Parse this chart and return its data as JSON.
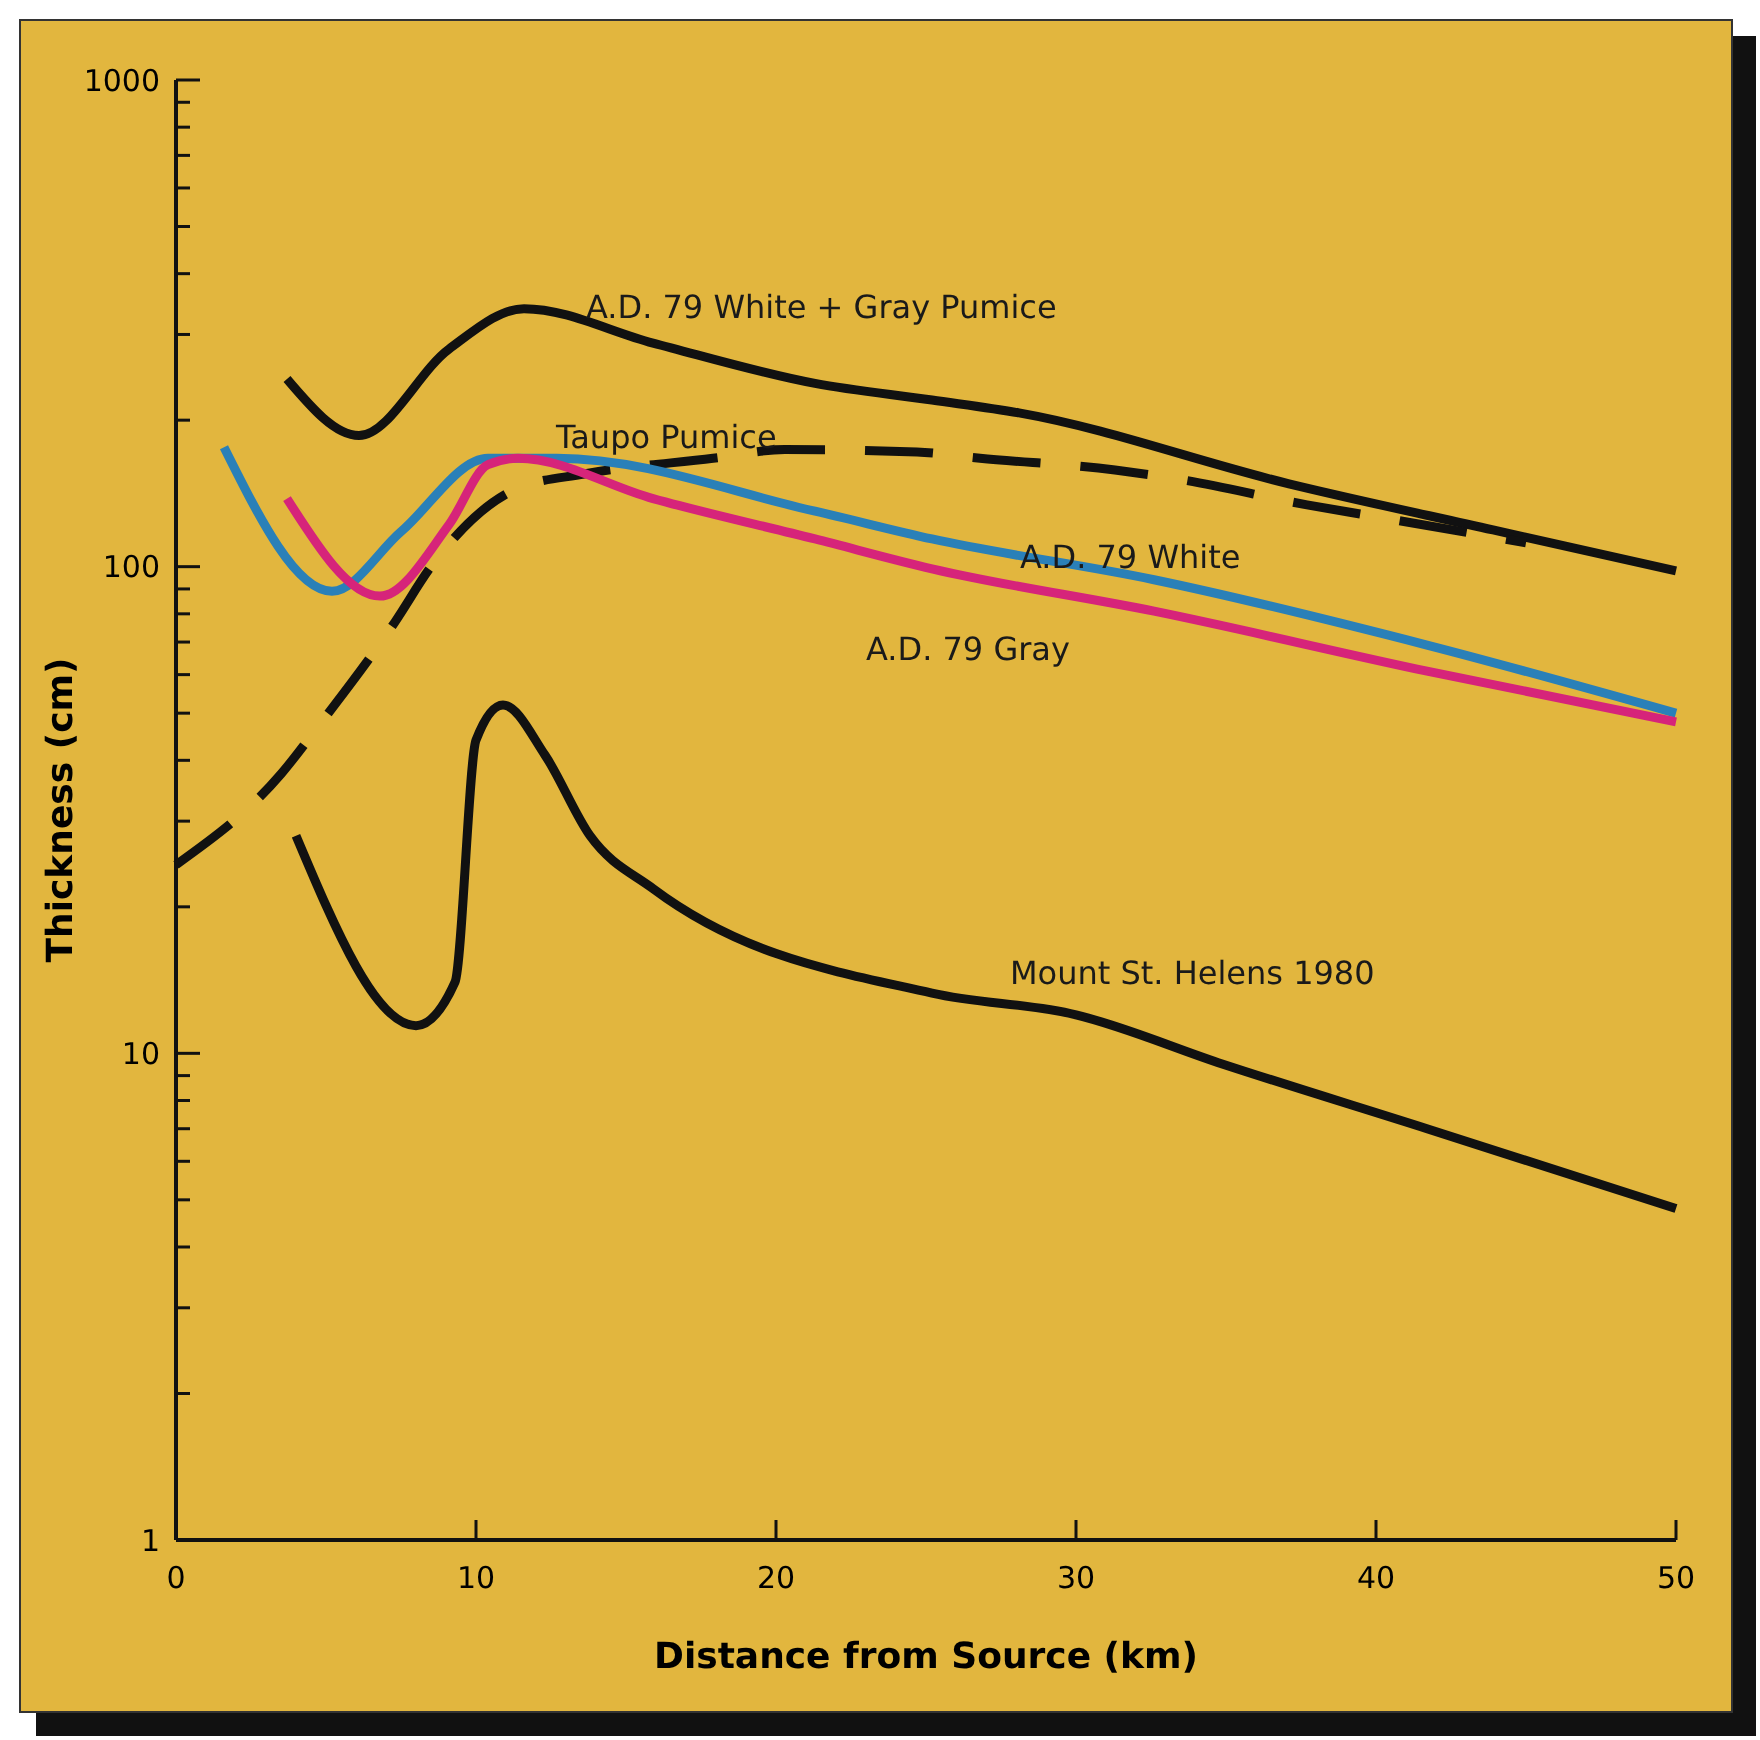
{
  "chart_data": {
    "type": "line",
    "xlabel": "Distance from Source (km)",
    "ylabel": "Thickness (cm)",
    "log": "y",
    "xlim": [
      0,
      50
    ],
    "ylim": [
      1,
      1000
    ],
    "xticks": [
      0,
      10,
      20,
      30,
      40,
      50
    ],
    "yticks": [
      1,
      {
        "value": 2,
        "label": null
      },
      {
        "value": 3,
        "label": null
      },
      {
        "value": 4,
        "label": null
      },
      {
        "value": 5,
        "label": null
      },
      {
        "value": 6,
        "label": null
      },
      {
        "value": 7,
        "label": null
      },
      {
        "value": 8,
        "label": null
      },
      {
        "value": 9,
        "label": null
      },
      10,
      {
        "value": 20,
        "label": null
      },
      {
        "value": 30,
        "label": null
      },
      {
        "value": 40,
        "label": null
      },
      {
        "value": 50,
        "label": null
      },
      {
        "value": 60,
        "label": null
      },
      {
        "value": 70,
        "label": null
      },
      {
        "value": 80,
        "label": null
      },
      {
        "value": 90,
        "label": null
      },
      100,
      {
        "value": 200,
        "label": null
      },
      {
        "value": 300,
        "label": null
      },
      {
        "value": 400,
        "label": null
      },
      {
        "value": 500,
        "label": null
      },
      {
        "value": 600,
        "label": null
      },
      {
        "value": 700,
        "label": null
      },
      {
        "value": 800,
        "label": null
      },
      {
        "value": 900,
        "label": null
      },
      1000
    ],
    "grid": false,
    "marker": "none",
    "series": [
      {
        "name": "A.D. 79 White + Gray Pumice",
        "color": "#111111",
        "line_style": "solid",
        "x": [
          3.7,
          6.1,
          9.1,
          11.6,
          15.9,
          21.3,
          25.2,
          28.1,
          37.1,
          43.9,
          50
        ],
        "values": [
          243,
          186,
          280,
          339,
          288,
          238,
          220,
          207,
          148,
          119,
          98
        ]
      },
      {
        "name": "Taupo Pumice",
        "color": "#111111",
        "line_style": "dashed",
        "x": [
          0,
          3.5,
          4.8,
          7.3,
          8.5,
          11.4,
          13.6,
          17.9,
          20.3,
          24.7,
          26.8,
          31.3,
          33.5,
          37.7,
          39.9,
          45
        ],
        "values": [
          24.4,
          37.5,
          47.5,
          77,
          100,
          145,
          155,
          167,
          174,
          172,
          167,
          158,
          151,
          134,
          127,
          112
        ]
      },
      {
        "name": "A.D. 79 White",
        "color": "#2a80b8",
        "line_style": "solid",
        "x": [
          1.6,
          5.2,
          7.5,
          10.4,
          12.7,
          21.3,
          25.2,
          32.6,
          41.7,
          50
        ],
        "values": [
          176,
          89,
          118,
          167,
          167,
          130,
          114,
          94,
          69,
          50
        ]
      },
      {
        "name": "A.D. 79 Gray",
        "color": "#d6247a",
        "line_style": "solid",
        "x": [
          3.7,
          6.8,
          9.1,
          10.4,
          11.4,
          15.9,
          21.3,
          25.2,
          32.6,
          41.7,
          50
        ],
        "values": [
          138,
          87,
          122,
          162,
          167,
          138,
          114,
          99,
          81,
          61,
          48
        ]
      },
      {
        "name": "Mount St. Helens 1980",
        "color": "#111111",
        "line_style": "solid",
        "x": [
          4,
          8,
          9.3,
          10,
          10.9,
          12.3,
          13.8,
          15.9,
          25.2,
          30,
          34.9,
          41.7,
          50
        ],
        "values": [
          28,
          11.4,
          14,
          44,
          52,
          41,
          28,
          21.8,
          13.3,
          12,
          9.5,
          7,
          4.8
        ]
      }
    ]
  }
}
